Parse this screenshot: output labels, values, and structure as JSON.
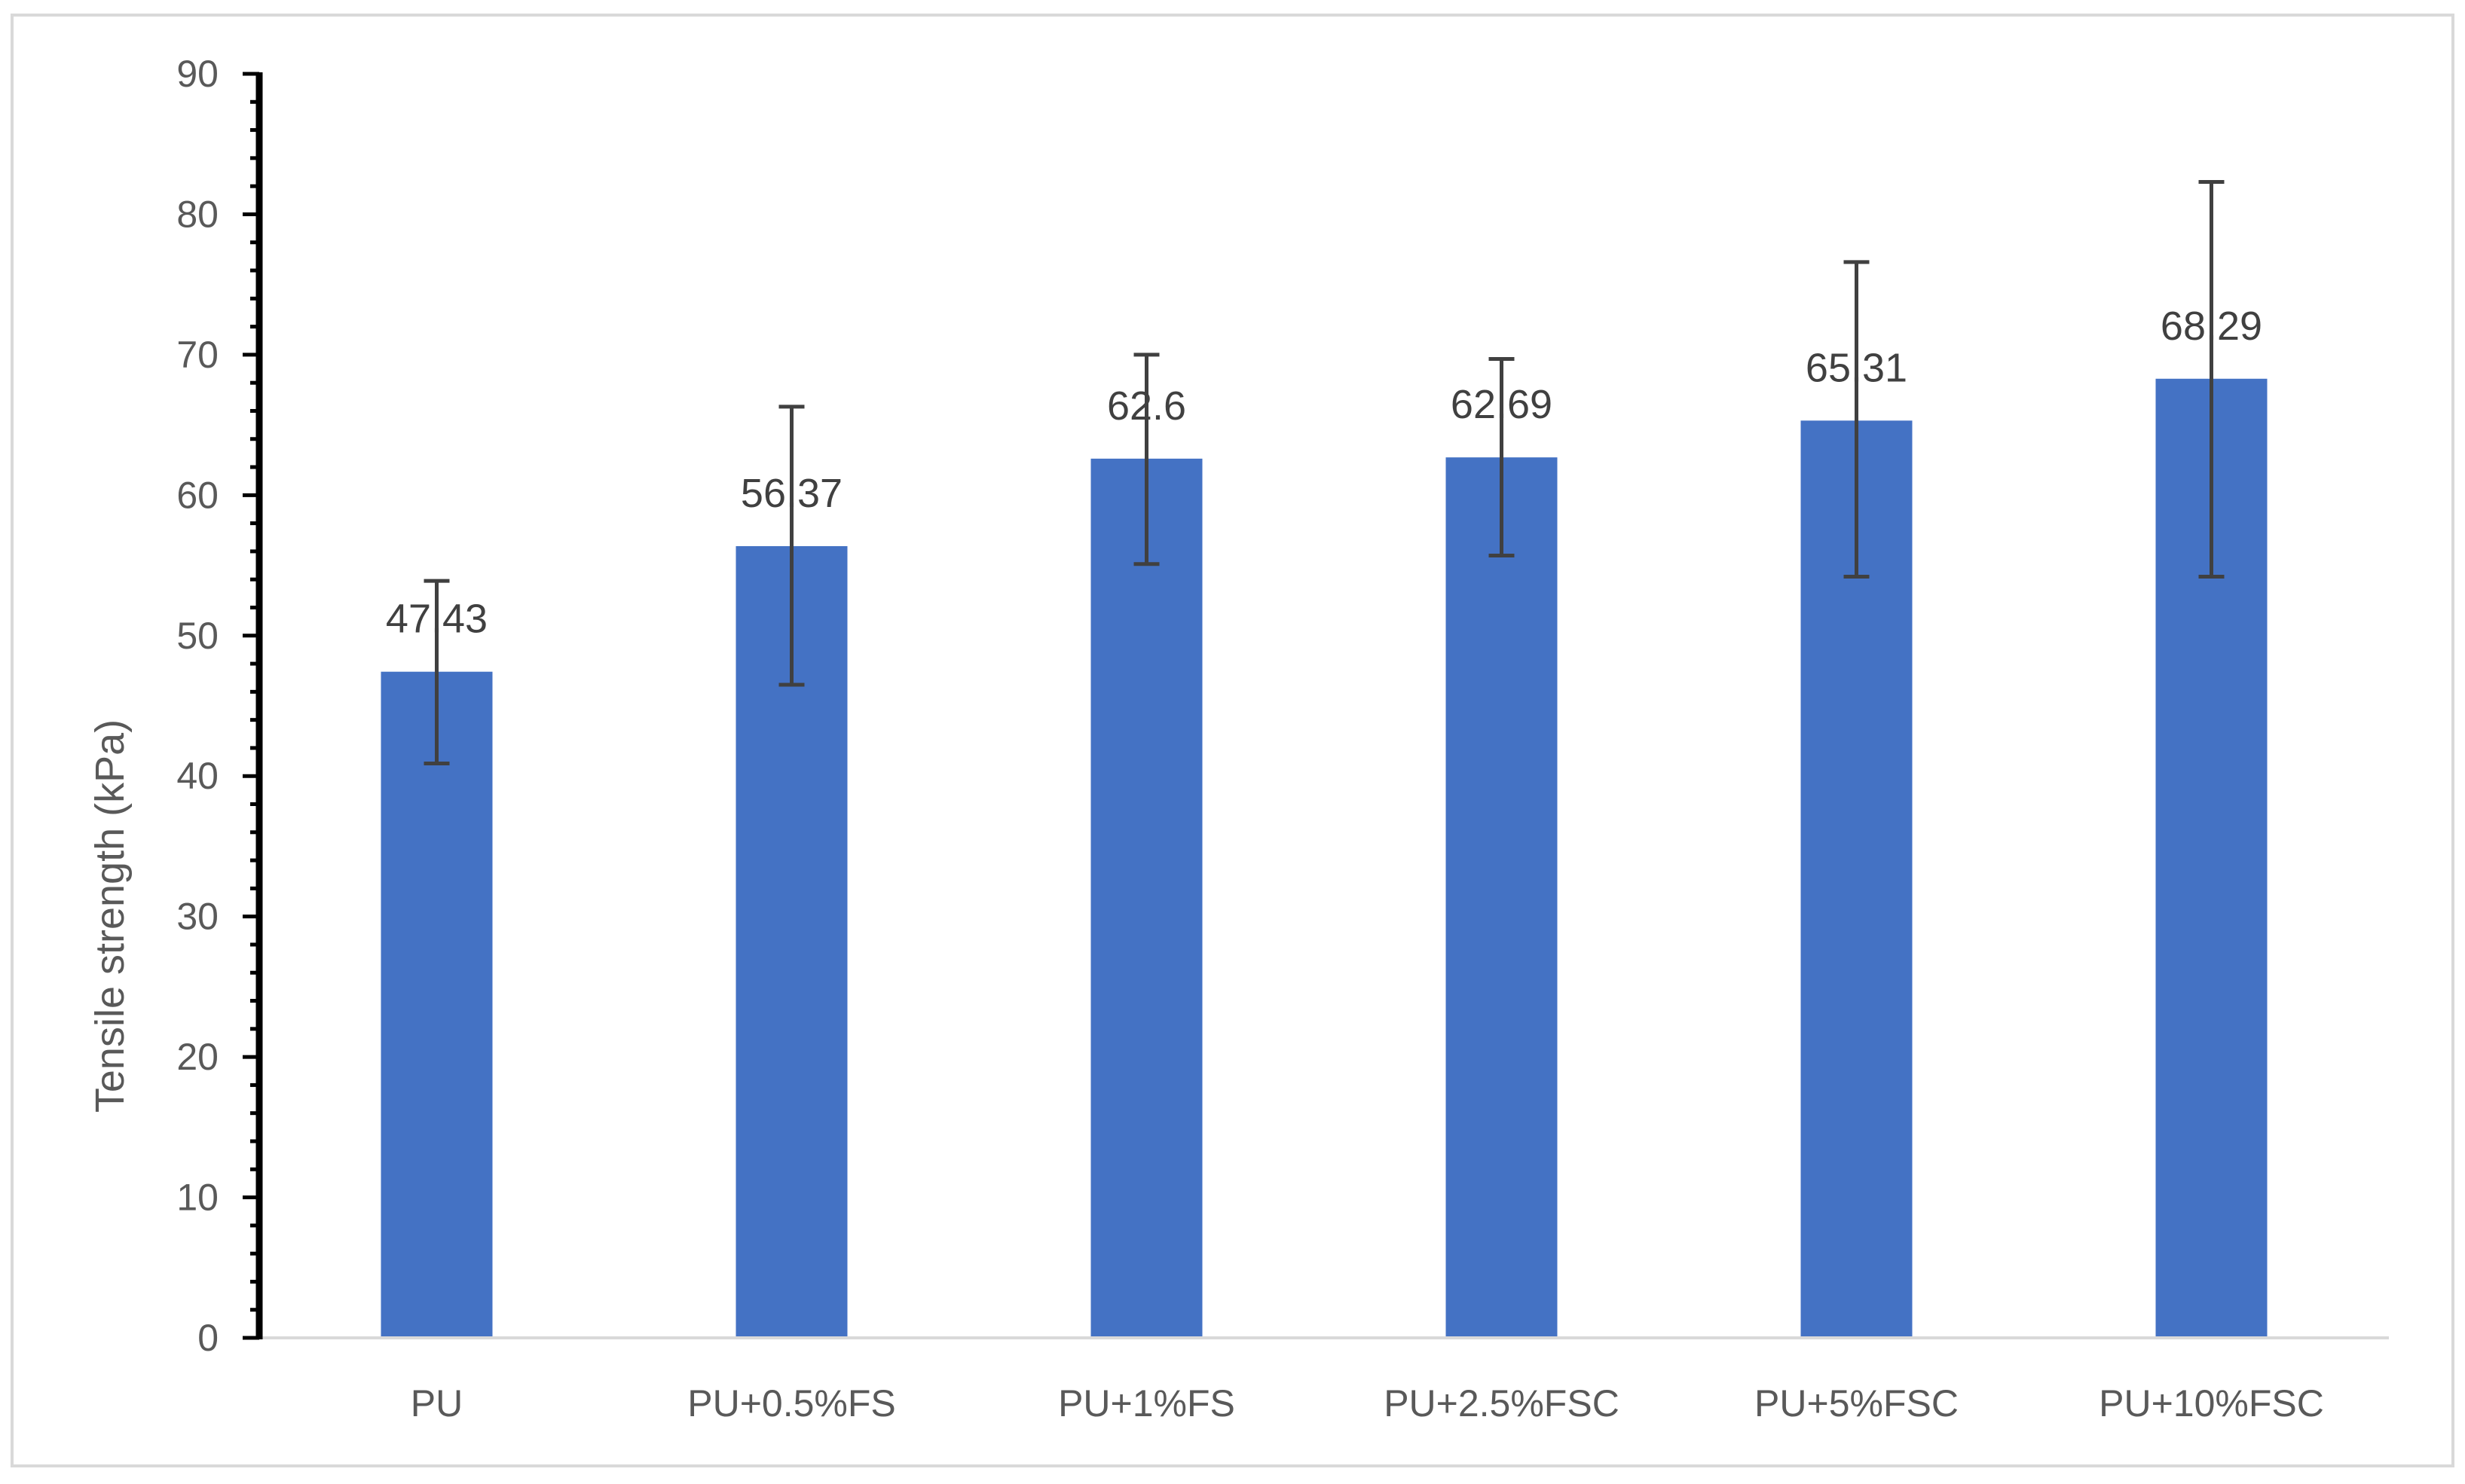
{
  "chart_data": {
    "type": "bar",
    "title": "",
    "xlabel": "",
    "ylabel": "Tensile strength (kPa)",
    "ylim": [
      0,
      90
    ],
    "yticks": [
      0,
      10,
      20,
      30,
      40,
      50,
      60,
      70,
      80,
      90
    ],
    "grid": false,
    "legend": "none",
    "categories": [
      "PU",
      "PU+0.5%FS",
      "PU+1%FS",
      "PU+2.5%FSC",
      "PU+5%FSC",
      "PU+10%FSC"
    ],
    "values": [
      47.43,
      56.37,
      62.6,
      62.69,
      65.31,
      68.29
    ],
    "data_labels": [
      "47.43",
      "56.37",
      "62.6",
      "62.69",
      "65.31",
      "68.29"
    ],
    "error_bars": [
      {
        "low": 40.9,
        "high": 53.9
      },
      {
        "low": 46.5,
        "high": 66.3
      },
      {
        "low": 55.1,
        "high": 70.0
      },
      {
        "low": 55.7,
        "high": 69.7
      },
      {
        "low": 54.2,
        "high": 76.6
      },
      {
        "low": 54.2,
        "high": 82.3
      }
    ],
    "colors": {
      "bar": "#4472c4",
      "error_bar": "#404040",
      "axis": "#000000",
      "baseline": "#d9d9d9"
    }
  }
}
